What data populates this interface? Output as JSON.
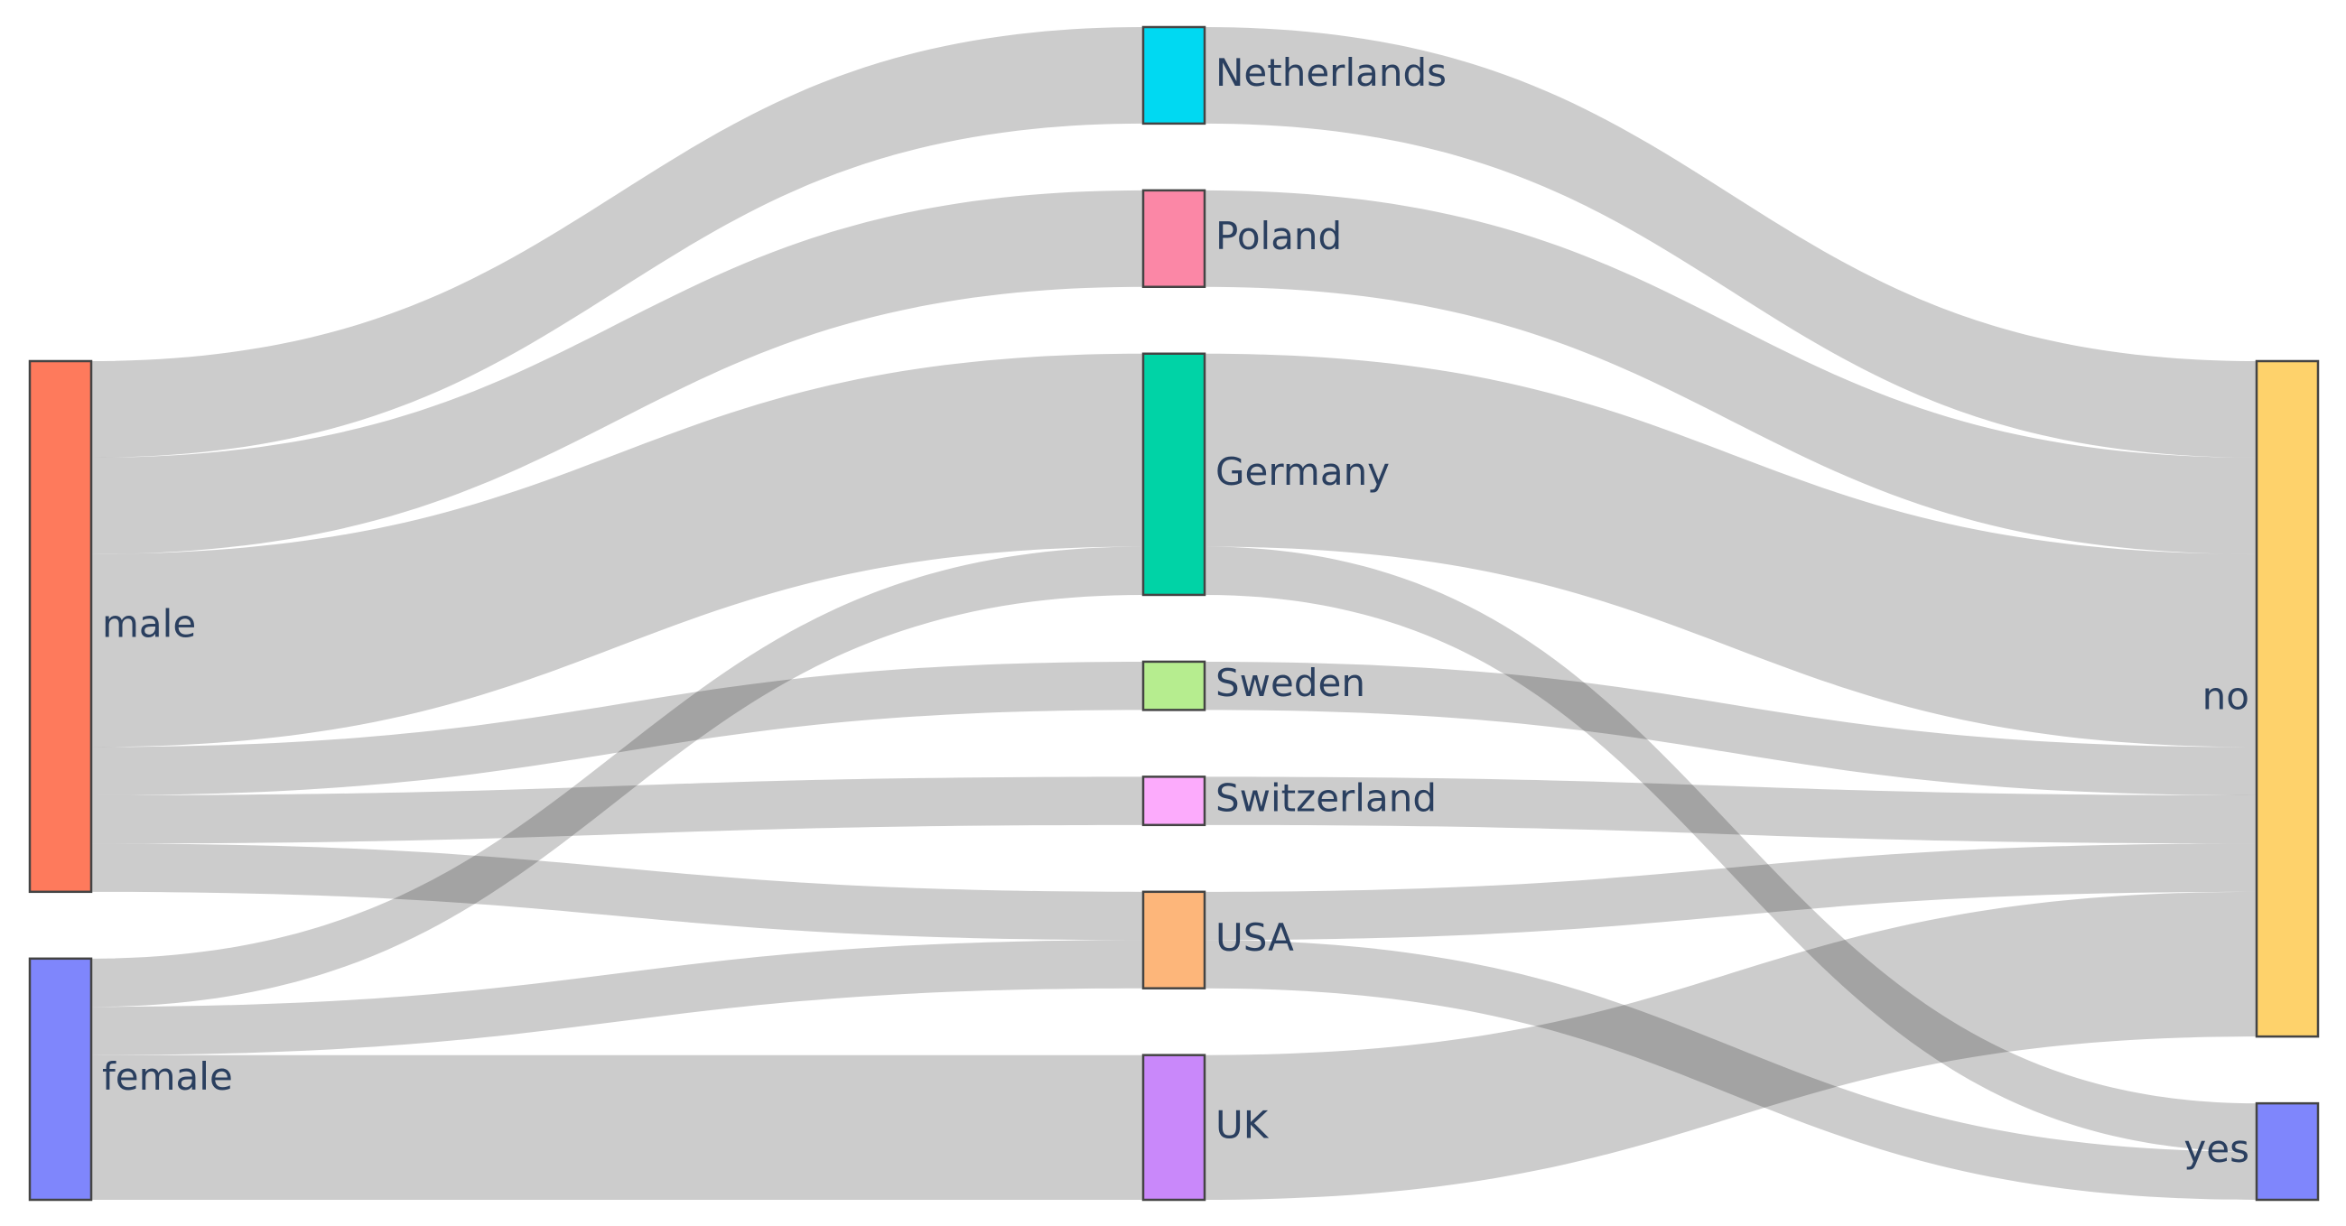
{
  "chart_data": {
    "type": "sankey",
    "nodes": [
      {
        "label": "male",
        "color": "#fe7a5c"
      },
      {
        "label": "female",
        "color": "#7f86fc"
      },
      {
        "label": "Netherlands",
        "color": "#00d9f2"
      },
      {
        "label": "Poland",
        "color": "#fb87a6"
      },
      {
        "label": "Germany",
        "color": "#00d3a6"
      },
      {
        "label": "Sweden",
        "color": "#b6ed8f"
      },
      {
        "label": "Switzerland",
        "color": "#fcabfc"
      },
      {
        "label": "USA",
        "color": "#fdb67a"
      },
      {
        "label": "UK",
        "color": "#c988fa"
      },
      {
        "label": "no",
        "color": "#fed26b"
      },
      {
        "label": "yes",
        "color": "#7f86fc"
      }
    ],
    "links": [
      {
        "source": 0,
        "target": 2,
        "value": 2
      },
      {
        "source": 0,
        "target": 3,
        "value": 2
      },
      {
        "source": 0,
        "target": 4,
        "value": 4
      },
      {
        "source": 0,
        "target": 5,
        "value": 1
      },
      {
        "source": 0,
        "target": 6,
        "value": 1
      },
      {
        "source": 0,
        "target": 7,
        "value": 1
      },
      {
        "source": 1,
        "target": 4,
        "value": 1
      },
      {
        "source": 1,
        "target": 7,
        "value": 1
      },
      {
        "source": 1,
        "target": 8,
        "value": 3
      },
      {
        "source": 2,
        "target": 9,
        "value": 2
      },
      {
        "source": 3,
        "target": 9,
        "value": 2
      },
      {
        "source": 4,
        "target": 9,
        "value": 4
      },
      {
        "source": 4,
        "target": 10,
        "value": 1
      },
      {
        "source": 5,
        "target": 9,
        "value": 1
      },
      {
        "source": 6,
        "target": 9,
        "value": 1
      },
      {
        "source": 7,
        "target": 9,
        "value": 1
      },
      {
        "source": 7,
        "target": 10,
        "value": 1
      },
      {
        "source": 8,
        "target": 9,
        "value": 3
      }
    ]
  }
}
